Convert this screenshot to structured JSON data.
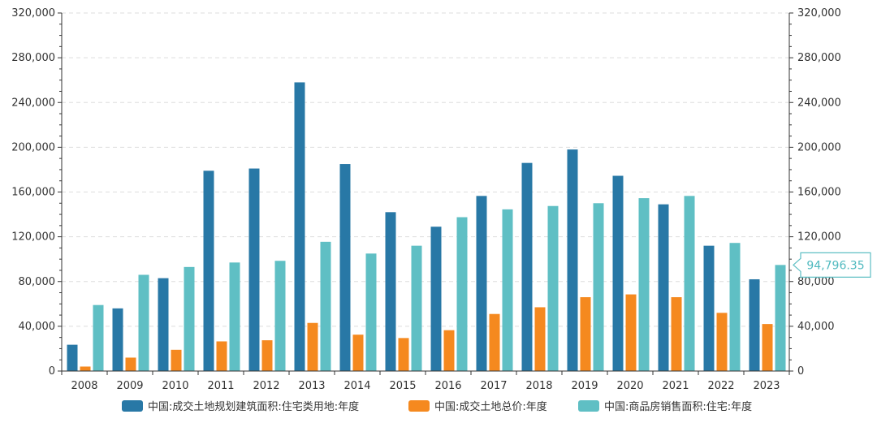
{
  "chart_data": {
    "type": "bar",
    "title": "",
    "xlabel": "",
    "ylabel": "",
    "categories": [
      "2008",
      "2009",
      "2010",
      "2011",
      "2012",
      "2013",
      "2014",
      "2015",
      "2016",
      "2017",
      "2018",
      "2019",
      "2020",
      "2021",
      "2022",
      "2023"
    ],
    "series": [
      {
        "name": "中国:成交土地规划建筑面积:住宅类用地:年度",
        "color": "#2878a6",
        "values": [
          23500,
          56000,
          83000,
          179000,
          181000,
          258000,
          185000,
          142000,
          129000,
          156500,
          186000,
          198000,
          174500,
          149000,
          112000,
          82000
        ]
      },
      {
        "name": "中国:成交土地总价:年度",
        "color": "#f5891f",
        "values": [
          4000,
          12000,
          19000,
          26500,
          27500,
          43000,
          32500,
          29500,
          36500,
          51000,
          57000,
          66000,
          68500,
          66000,
          52000,
          42000
        ]
      },
      {
        "name": "中国:商品房销售面积:住宅:年度",
        "color": "#5fbfc4",
        "values": [
          59000,
          86000,
          93000,
          97000,
          98500,
          115500,
          105000,
          112000,
          137500,
          144500,
          147500,
          150000,
          154500,
          156500,
          114500,
          94796.35
        ]
      }
    ],
    "ylim": [
      0,
      320000
    ],
    "yticks": [
      "0",
      "40,000",
      "80,000",
      "120,000",
      "160,000",
      "200,000",
      "240,000",
      "280,000",
      "320,000"
    ],
    "grid": true,
    "legend_position": "bottom",
    "callout": {
      "label": "94,796.35"
    }
  }
}
